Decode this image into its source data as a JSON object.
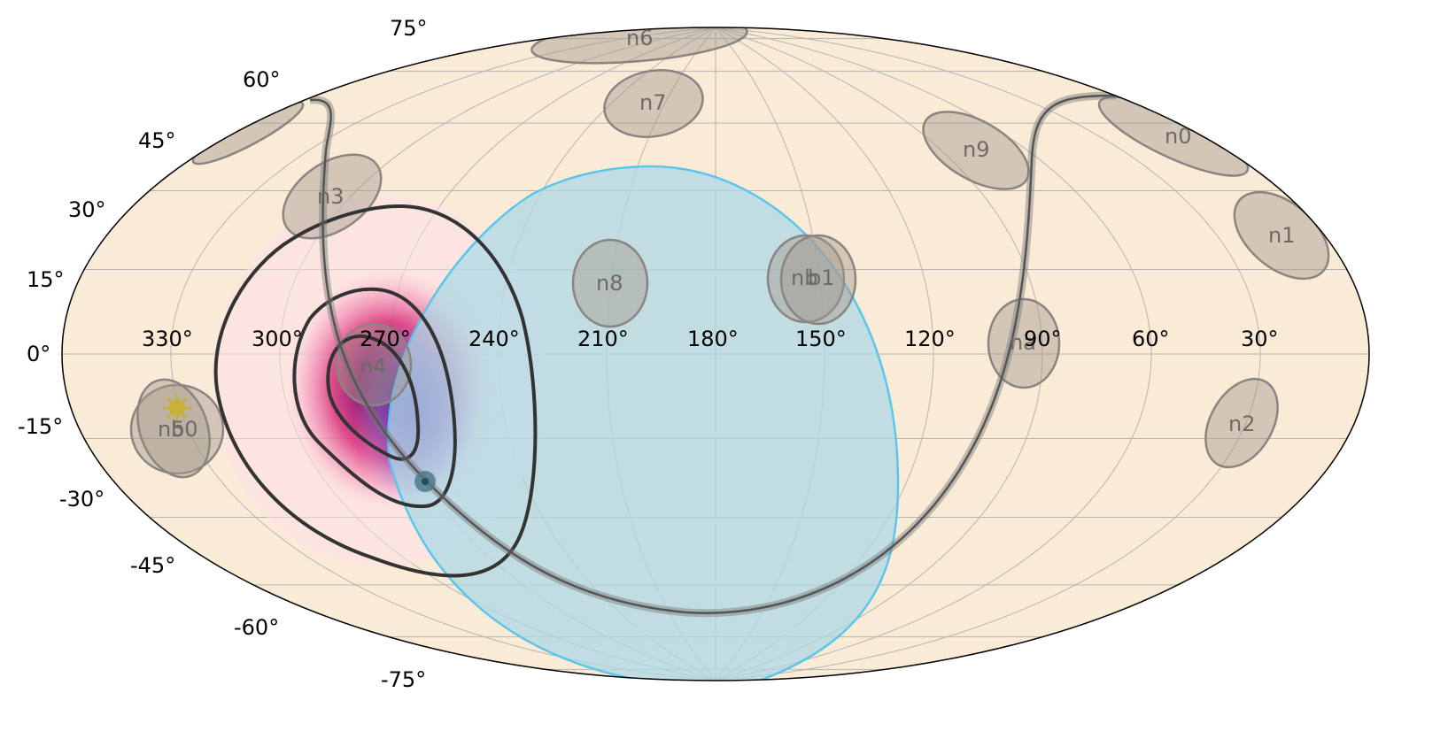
{
  "map": {
    "projection": "aitoff",
    "background_color": "#faebd7",
    "ra_tick_labels": [
      "330°",
      "300°",
      "270°",
      "240°",
      "210°",
      "180°",
      "150°",
      "120°",
      "90°",
      "60°",
      "30°"
    ],
    "dec_tick_labels": [
      "75°",
      "60°",
      "45°",
      "30°",
      "15°",
      "0°",
      "-15°",
      "-30°",
      "-45°",
      "-60°",
      "-75°"
    ],
    "detectors": [
      {
        "label": "n0",
        "fill": "#a49a8f"
      },
      {
        "label": "n1",
        "fill": "#a49a8f"
      },
      {
        "label": "n2",
        "fill": "#a49a8f"
      },
      {
        "label": "n3",
        "fill": "#a49a8f"
      },
      {
        "label": "n4",
        "fill": "#a49a8f"
      },
      {
        "label": "n5",
        "fill": "#a49a8f"
      },
      {
        "label": "n6",
        "fill": "#a49a8f"
      },
      {
        "label": "n7",
        "fill": "#a49a8f"
      },
      {
        "label": "n8",
        "fill": "#a49a8f"
      },
      {
        "label": "n9",
        "fill": "#a49a8f"
      },
      {
        "label": "na",
        "fill": "#a49a8f"
      },
      {
        "label": "nb",
        "fill": "#a49a8f"
      },
      {
        "label": "b0",
        "fill": "#a49a8f"
      },
      {
        "label": "b1",
        "fill": "#a49a8f"
      }
    ],
    "earth_occultation_color": "#add8e6",
    "earth_occultation_edge": "#5bc6ec",
    "localization_colors": [
      "#e7298a",
      "#6a0a6b",
      "#6b4bc4"
    ],
    "contour_color": "#333333",
    "galactic_plane_color": "#555555",
    "sun_color": "#c9b037"
  }
}
